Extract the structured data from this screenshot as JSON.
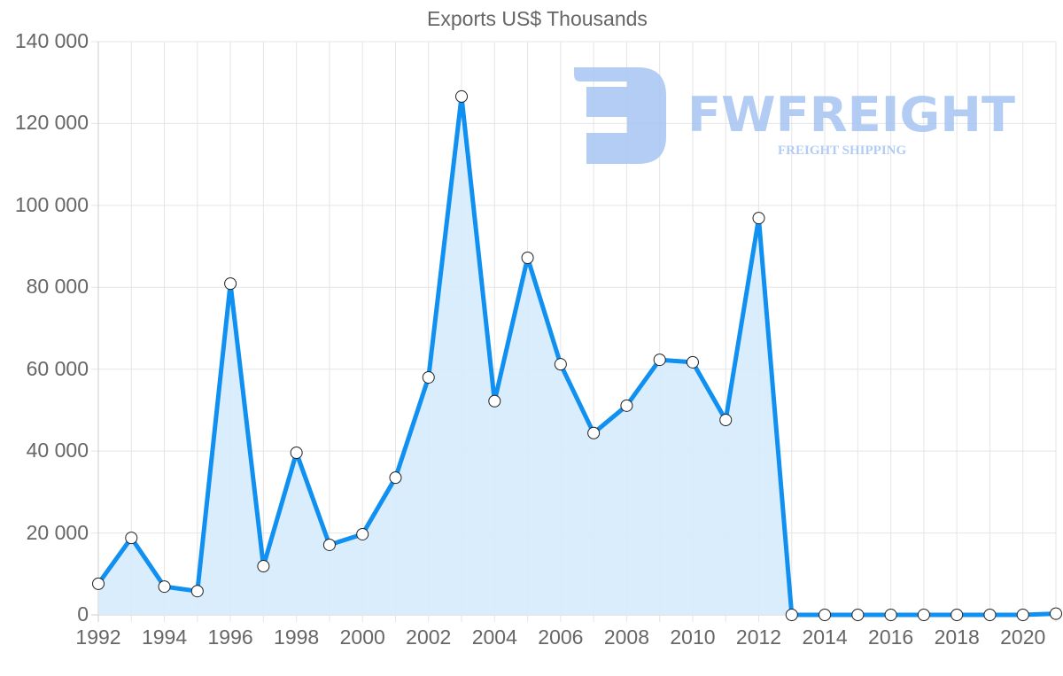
{
  "chart": {
    "title": "Exports US$ Thousands",
    "watermark": {
      "brand": "FWFREIGHT",
      "tagline": "FREIGHT SHIPPING",
      "color": "#a6c4f2"
    },
    "colors": {
      "line": "#1090f0",
      "fill": "#d6ebfc",
      "grid": "#e5e5e5",
      "axis": "#cccccc",
      "text": "#666666",
      "point_fill": "#ffffff",
      "point_stroke": "#222222"
    }
  },
  "chart_data": {
    "type": "line",
    "title": "Exports US$ Thousands",
    "xlabel": "",
    "ylabel": "",
    "x": [
      1992,
      1993,
      1994,
      1995,
      1996,
      1997,
      1998,
      1999,
      2000,
      2001,
      2002,
      2003,
      2004,
      2005,
      2006,
      2007,
      2008,
      2009,
      2010,
      2011,
      2012,
      2013,
      2014,
      2015,
      2016,
      2017,
      2018,
      2019,
      2020,
      2021
    ],
    "series": [
      {
        "name": "Exports US$ Thousands",
        "area": true,
        "values": [
          7600,
          18800,
          6900,
          5800,
          80900,
          11900,
          39600,
          17100,
          19700,
          33500,
          58000,
          126600,
          52200,
          87200,
          61200,
          44400,
          51100,
          62300,
          61700,
          47600,
          96900,
          0,
          0,
          0,
          0,
          0,
          0,
          0,
          0,
          300
        ]
      }
    ],
    "ylim": [
      0,
      140000
    ],
    "yticks": [
      0,
      20000,
      40000,
      60000,
      80000,
      100000,
      120000,
      140000
    ],
    "ytick_labels": [
      "0",
      "20 000",
      "40 000",
      "60 000",
      "80 000",
      "100 000",
      "120 000",
      "140 000"
    ],
    "xtick_labels": [
      "1992",
      "1994",
      "1996",
      "1998",
      "2000",
      "2002",
      "2004",
      "2006",
      "2008",
      "2010",
      "2012",
      "2014",
      "2016",
      "2018",
      "2020"
    ],
    "grid": true,
    "legend": null
  }
}
